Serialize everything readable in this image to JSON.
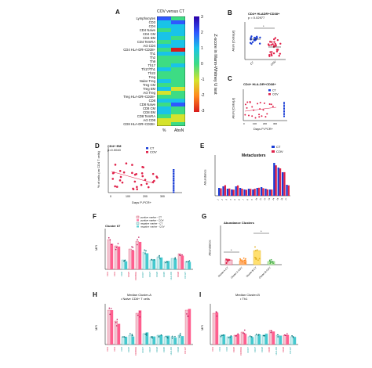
{
  "panel_labels": [
    "A",
    "B",
    "C",
    "D",
    "E",
    "F",
    "G",
    "H",
    "I"
  ],
  "heatmap": {
    "title": "COV versus CT",
    "rows": [
      "Lymphocytes",
      "CD3",
      "CD4",
      "CD4 Naive",
      "CD4 CM",
      "CD4 EM",
      "CD4 TemRA",
      "Act CD4",
      "CD4 HLA-DR+CD38+",
      "Th1",
      "Th2",
      "Th9",
      "Th17",
      "Th17/Th1",
      "Th22",
      "Treg",
      "Naive Treg",
      "Treg CM",
      "Treg EM",
      "Act Treg",
      "Treg HLA-DR+CD38+",
      "CD8",
      "CD8 Naive",
      "CD8 CM",
      "CD8 EM",
      "CD8 TemRA",
      "Act CD8",
      "CD8 HLA-DR+CD38+"
    ],
    "columns": [
      "%",
      "AbsN"
    ],
    "colorbar_label": "Z-score in Mann-Whitney U test",
    "colorbar_ticks": [
      "3",
      "2",
      "1",
      "0",
      "-1",
      "-2",
      "-3"
    ],
    "colors": {
      "3": "#2b00a8",
      "2": "#2f58ff",
      "1": "#19c3e8",
      "0": "#3ddc84",
      "-1": "#d5e32c",
      "-2": "#ff8a1f",
      "-3": "#d81b1b"
    }
  },
  "panel_b": {
    "title": "CD4+ HLADR+CD38+",
    "p": "p = 0.02977",
    "ylabel": "AbsN [Cells/µl]",
    "categories": [
      "CT",
      "COV"
    ],
    "star": "*"
  },
  "panel_c": {
    "title": "CD4+ HLA-DR+CD38+",
    "ylabel": "AbsN [Cells/µl]",
    "xlabel": "Days P-PCR+",
    "xticks": [
      "0",
      "100",
      "200",
      "300"
    ],
    "legend": [
      "CT",
      "COV"
    ]
  },
  "panel_d": {
    "title": "CD4+ EM",
    "p": "p=0.0040",
    "ylabel": "% of cells (on CD4 T cells)",
    "xlabel": "Days P-PCR+",
    "xticks": [
      "0",
      "100",
      "200",
      "300"
    ],
    "legend": [
      "CT",
      "COV"
    ]
  },
  "panel_e": {
    "title": "Metaclusters",
    "ylabel": "Abundance",
    "legend": [
      "CT",
      "COV"
    ]
  },
  "panel_f": {
    "title": "Cluster 67",
    "ylabel": "MFI",
    "legend": [
      "positive marker - CT",
      "positive marker - COV",
      "negative marker - CT",
      "negative marker - COV"
    ],
    "markers": [
      "CD3",
      "CD4",
      "CD8",
      "CD25",
      "CD45RA",
      "CCR7",
      "CD27",
      "CD28",
      "CD95",
      "HLA-DR",
      "CD38",
      "CD127"
    ]
  },
  "panel_g": {
    "title": "Abundance Clusters",
    "ylabel": "Abundance",
    "categories": [
      "Cluster A-CT",
      "Cluster A-COV",
      "Cluster B-CT",
      "Cluster B-COV"
    ]
  },
  "panel_h": {
    "title": "Median Cluster-A",
    "subtitle": "• Naive CD8+ T cells",
    "ylabel": "MFI"
  },
  "panel_i": {
    "title": "Median Cluster-B",
    "subtitle": "• Th1",
    "ylabel": "MFI"
  }
}
